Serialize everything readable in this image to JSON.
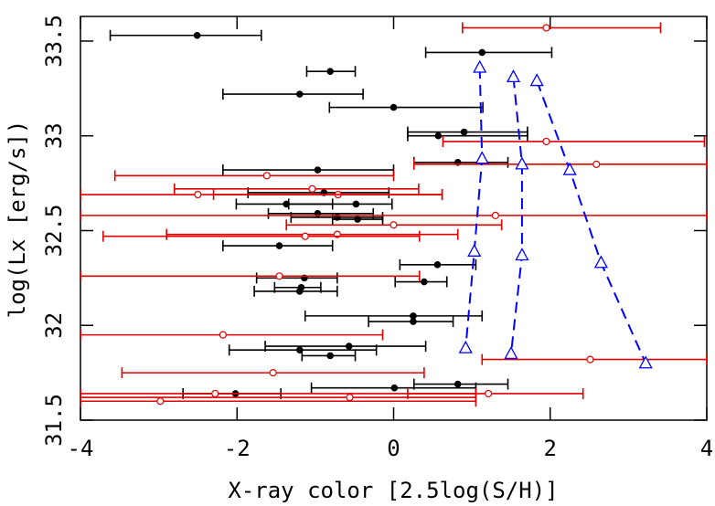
{
  "chart_data": {
    "type": "scatter",
    "x_label": "X-ray color [2.5log(S/H)]",
    "y_label": "log(Lx [erg/s])",
    "xlim": [
      -4,
      4
    ],
    "ylim": [
      31.5,
      33.63
    ],
    "xticks": [
      -4,
      -2,
      0,
      2,
      4
    ],
    "yticks": [
      31.5,
      32,
      32.5,
      33,
      33.5
    ],
    "series": [
      {
        "color": "#000000",
        "marker": "filled-circle",
        "x": [
          -2.51,
          1.13,
          -0.81,
          -1.2,
          0,
          0.9,
          0.57,
          0.82,
          -0.97,
          -0.89,
          -1.37,
          -0.48,
          -0.97,
          -0.72,
          -0.46,
          -1.46,
          0.56,
          0.39,
          -1.14,
          -1.18,
          -1.2,
          0.25,
          0.25,
          -0.57,
          -1.2,
          -0.81,
          0.82,
          0.01,
          -2.02
        ],
        "y": [
          33.53,
          33.44,
          33.34,
          33.22,
          33.15,
          33.02,
          33.0,
          32.86,
          32.82,
          32.7,
          32.64,
          32.64,
          32.59,
          32.57,
          32.56,
          32.42,
          32.32,
          32.23,
          32.25,
          32.2,
          32.18,
          32.05,
          32.02,
          31.89,
          31.87,
          31.84,
          31.69,
          31.67,
          31.64
        ],
        "x_low": [
          -3.62,
          0.41,
          -1.11,
          -2.18,
          -0.82,
          0.18,
          0.18,
          0.26,
          -2.18,
          -1.86,
          -2.01,
          -1.34,
          -1.6,
          -1.31,
          -0.78,
          -2.18,
          0.08,
          0.02,
          -1.75,
          -1.52,
          -1.78,
          -1.13,
          -0.32,
          -1.64,
          -2.1,
          -1.17,
          0.26,
          -1.05,
          -2.69
        ],
        "x_high": [
          -1.69,
          2.02,
          -0.49,
          -0.39,
          1.14,
          1.71,
          1.71,
          1.46,
          0,
          -0.06,
          -0.78,
          -0.02,
          -0.26,
          -0.14,
          -0.14,
          -0.78,
          1.05,
          0.68,
          -0.72,
          -0.93,
          -0.72,
          1.13,
          0.76,
          0.41,
          -0.22,
          -0.49,
          1.46,
          1.05,
          -1.44
        ]
      },
      {
        "color": "#e00000",
        "marker": "open-circle",
        "x": [
          1.95,
          1.95,
          2.59,
          -1.62,
          -1.04,
          -0.71,
          -2.5,
          1.3,
          0,
          -0.72,
          -1.13,
          -1.46,
          -2.18,
          -1.54,
          2.51,
          -2.28,
          1.21,
          -0.56,
          -2.98
        ],
        "y": [
          33.57,
          32.97,
          32.85,
          32.79,
          32.72,
          32.69,
          32.69,
          32.58,
          32.53,
          32.48,
          32.47,
          32.26,
          31.95,
          31.75,
          31.82,
          31.64,
          31.64,
          31.62,
          31.6
        ],
        "x_low": [
          0.88,
          0.63,
          0.26,
          -3.56,
          -2.8,
          -2.3,
          -4,
          -4,
          -1.37,
          -2.9,
          -3.71,
          -4,
          -4,
          -3.47,
          1.13,
          -4,
          0.18,
          -4,
          -4
        ],
        "x_high": [
          3.41,
          3.97,
          4,
          0,
          0.32,
          0.62,
          0.62,
          4,
          1.38,
          0.82,
          0.33,
          0.33,
          -0.14,
          0.39,
          4,
          1.05,
          2.42,
          1.05,
          1.05
        ]
      }
    ],
    "lines": [
      {
        "color": "#0000ff",
        "marker": "open-triangle",
        "x": [
          1.1,
          1.13,
          1.03,
          0.92
        ],
        "y": [
          33.36,
          32.88,
          32.39,
          31.88
        ]
      },
      {
        "color": "#0000ff",
        "marker": "open-triangle",
        "x": [
          1.53,
          1.64,
          1.64,
          1.5
        ],
        "y": [
          33.31,
          32.85,
          32.37,
          31.85
        ]
      },
      {
        "color": "#0000ff",
        "marker": "open-triangle",
        "x": [
          1.83,
          2.25,
          2.65,
          3.22
        ],
        "y": [
          33.29,
          32.82,
          32.33,
          31.8
        ]
      }
    ]
  }
}
